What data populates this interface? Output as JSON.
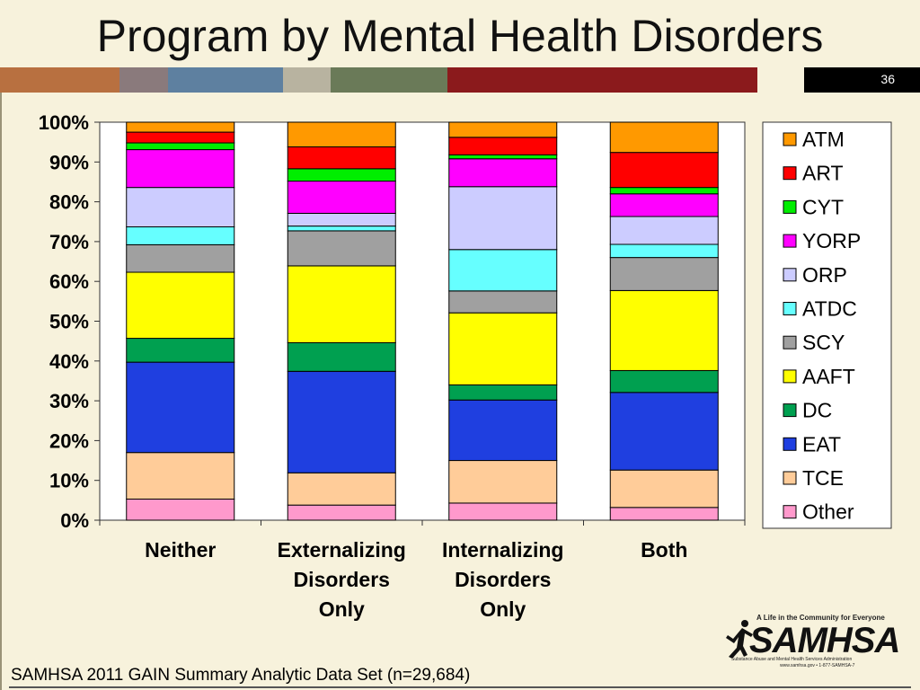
{
  "slide": {
    "title": "Program by Mental Health Disorders",
    "number": "36",
    "source": "SAMHSA 2011 GAIN Summary Analytic Data Set (n=29,684)",
    "band_colors": [
      "#b87040",
      "#8a7a7c",
      "#5e80a0",
      "#b8b3a0",
      "#6a7a58",
      "#8b1a1c",
      "#f7f2dc",
      "#000000"
    ]
  },
  "logo": {
    "tagline": "A Life in the Community for Everyone",
    "wordmark": "SAMHSA",
    "subtitle": "Substance Abuse and Mental Health Services Administration",
    "url": "www.samhsa.gov • 1-877-SAMHSA-7"
  },
  "chart_data": {
    "type": "bar",
    "stacked": true,
    "percent": true,
    "categories": [
      [
        "Neither"
      ],
      [
        "Externalizing",
        "Disorders",
        "Only"
      ],
      [
        "Internalizing",
        "Disorders",
        "Only"
      ],
      [
        "Both"
      ]
    ],
    "ylim": [
      0,
      100
    ],
    "yticks": [
      "0%",
      "10%",
      "20%",
      "30%",
      "40%",
      "50%",
      "60%",
      "70%",
      "80%",
      "90%",
      "100%"
    ],
    "grid": false,
    "legend_position": "right",
    "series": [
      {
        "name": "Other",
        "color": "#ff99cc",
        "values": [
          5.3,
          3.8,
          4.3,
          3.2
        ]
      },
      {
        "name": "TCE",
        "color": "#ffcc99",
        "values": [
          11.7,
          8.1,
          10.7,
          9.4
        ]
      },
      {
        "name": "EAT",
        "color": "#1f3fe0",
        "values": [
          22.7,
          25.5,
          15.2,
          19.5
        ]
      },
      {
        "name": "DC",
        "color": "#00a050",
        "values": [
          6.0,
          7.2,
          3.8,
          5.5
        ]
      },
      {
        "name": "AAFT",
        "color": "#ffff00",
        "values": [
          16.6,
          19.3,
          18.1,
          20.1
        ]
      },
      {
        "name": "SCY",
        "color": "#a0a0a0",
        "values": [
          6.9,
          8.8,
          5.5,
          8.3
        ]
      },
      {
        "name": "ATDC",
        "color": "#66ffff",
        "values": [
          4.5,
          1.2,
          10.4,
          3.3
        ]
      },
      {
        "name": "ORP",
        "color": "#ccccff",
        "values": [
          9.9,
          3.2,
          15.8,
          7.0
        ]
      },
      {
        "name": "YORP",
        "color": "#ff00ff",
        "values": [
          9.5,
          8.1,
          7.0,
          5.7
        ]
      },
      {
        "name": "CYT",
        "color": "#00ee00",
        "values": [
          1.7,
          3.1,
          1.0,
          1.6
        ]
      },
      {
        "name": "ART",
        "color": "#ff0000",
        "values": [
          2.7,
          5.5,
          4.4,
          8.8
        ]
      },
      {
        "name": "ATM",
        "color": "#ff9900",
        "values": [
          2.5,
          6.2,
          3.8,
          7.6
        ]
      }
    ]
  }
}
